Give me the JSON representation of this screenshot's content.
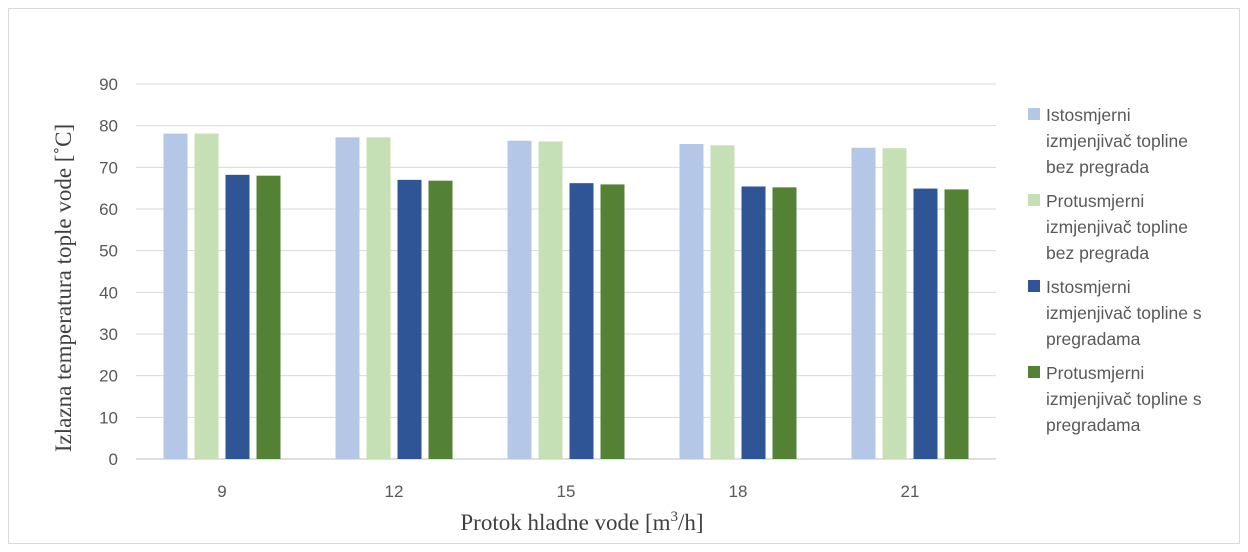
{
  "chart_data": {
    "type": "bar",
    "title": "",
    "xlabel": "Protok hladne vode [m",
    "xlabel_sup": "3",
    "xlabel_tail": "/h]",
    "ylabel": "Izlazna temperatura tople vode [˚C]",
    "ylim": [
      0,
      90
    ],
    "yticks": [
      0,
      10,
      20,
      30,
      40,
      50,
      60,
      70,
      80,
      90
    ],
    "grid": true,
    "legend_position": "right",
    "categories": [
      "9",
      "12",
      "15",
      "18",
      "21"
    ],
    "series": [
      {
        "name": "Istosmjerni\nizmjenjivač topline\nbez pregrada",
        "color": "#b4c7e7",
        "values": [
          78.1,
          77.2,
          76.4,
          75.6,
          74.7
        ]
      },
      {
        "name": "Protusmjerni\nizmjenjivač topline\nbez pregrada",
        "color": "#c5e0b4",
        "values": [
          78.1,
          77.2,
          76.2,
          75.3,
          74.6
        ]
      },
      {
        "name": "Istosmjerni\nizmjenjivač topline s\npregradama",
        "color": "#2f5597",
        "values": [
          68.2,
          67.0,
          66.2,
          65.4,
          64.9
        ]
      },
      {
        "name": "Protusmjerni\nizmjenjivač topline s\npregradama",
        "color": "#548235",
        "values": [
          68.0,
          66.8,
          65.9,
          65.2,
          64.7
        ]
      }
    ]
  }
}
